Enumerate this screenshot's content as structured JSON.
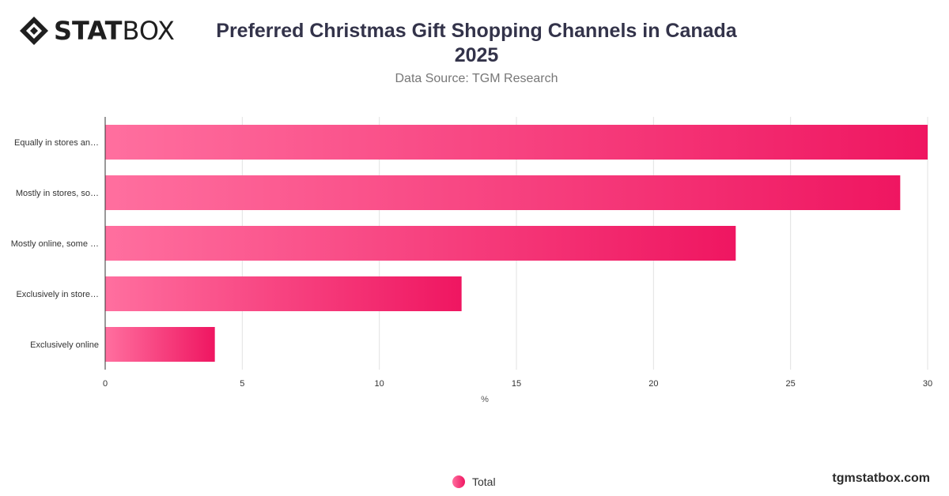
{
  "brand": {
    "logo_bold": "STAT",
    "logo_thin": "BOX",
    "site": "tgmstatbox.com"
  },
  "header": {
    "title_line1": "Preferred Christmas Gift Shopping Channels in Canada",
    "title_line2": "2025",
    "subtitle": "Data Source: TGM Research"
  },
  "colors": {
    "bar_start": "#ff6f9f",
    "bar_end": "#ef1661",
    "grid": "#e2e2e2",
    "axis": "#333333"
  },
  "chart_data": {
    "type": "bar",
    "orientation": "horizontal",
    "categories": [
      "Equally in stores an…",
      "Mostly in stores, so…",
      "Mostly online, some …",
      "Exclusively in store…",
      "Exclusively online"
    ],
    "series": [
      {
        "name": "Total",
        "values": [
          30,
          29,
          23,
          13,
          4
        ]
      }
    ],
    "xlabel": "%",
    "xlim": [
      0,
      30
    ],
    "xticks": [
      "0",
      "5",
      "10",
      "15",
      "20",
      "25",
      "30"
    ],
    "grid": true,
    "legend": "bottom-center"
  }
}
